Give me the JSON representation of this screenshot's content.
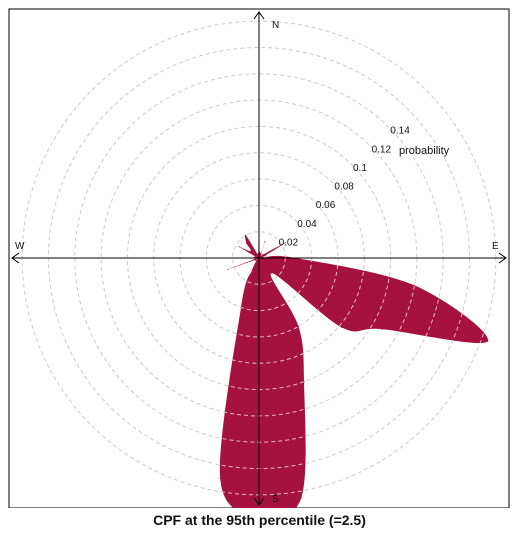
{
  "chart_data": {
    "type": "polar-rose",
    "title": "CPF at the 95th percentile (=2.5)",
    "radial_label": "probability",
    "radial_ticks": [
      0.02,
      0.04,
      0.06,
      0.08,
      0.1,
      0.12,
      0.14
    ],
    "radial_max": 0.19,
    "directions": [
      "N",
      "E",
      "S",
      "W"
    ],
    "grid": true,
    "fill_color": "#a5123f",
    "grid_color": "#cccccc",
    "series": [
      {
        "angles_deg": [
          0,
          10,
          20,
          30,
          40,
          50,
          60,
          70,
          80,
          90,
          100,
          110,
          120,
          130,
          140,
          150,
          160,
          170,
          180,
          190,
          200,
          210,
          220,
          230,
          240,
          250,
          260,
          270,
          280,
          290,
          300,
          310,
          320,
          330,
          340,
          350
        ],
        "values": [
          0.03,
          0.004,
          0.013,
          0.003,
          0.002,
          0.004,
          0.023,
          0.005,
          0.003,
          0.028,
          0.12,
          0.185,
          0.108,
          0.082,
          0.015,
          0.06,
          0.1,
          0.185,
          0.197,
          0.17,
          0.04,
          0.01,
          0.003,
          0.003,
          0.003,
          0.025,
          0.003,
          0.01,
          0.003,
          0.003,
          0.017,
          0.008,
          0.015,
          0.02,
          0.003,
          0.003
        ]
      }
    ]
  }
}
